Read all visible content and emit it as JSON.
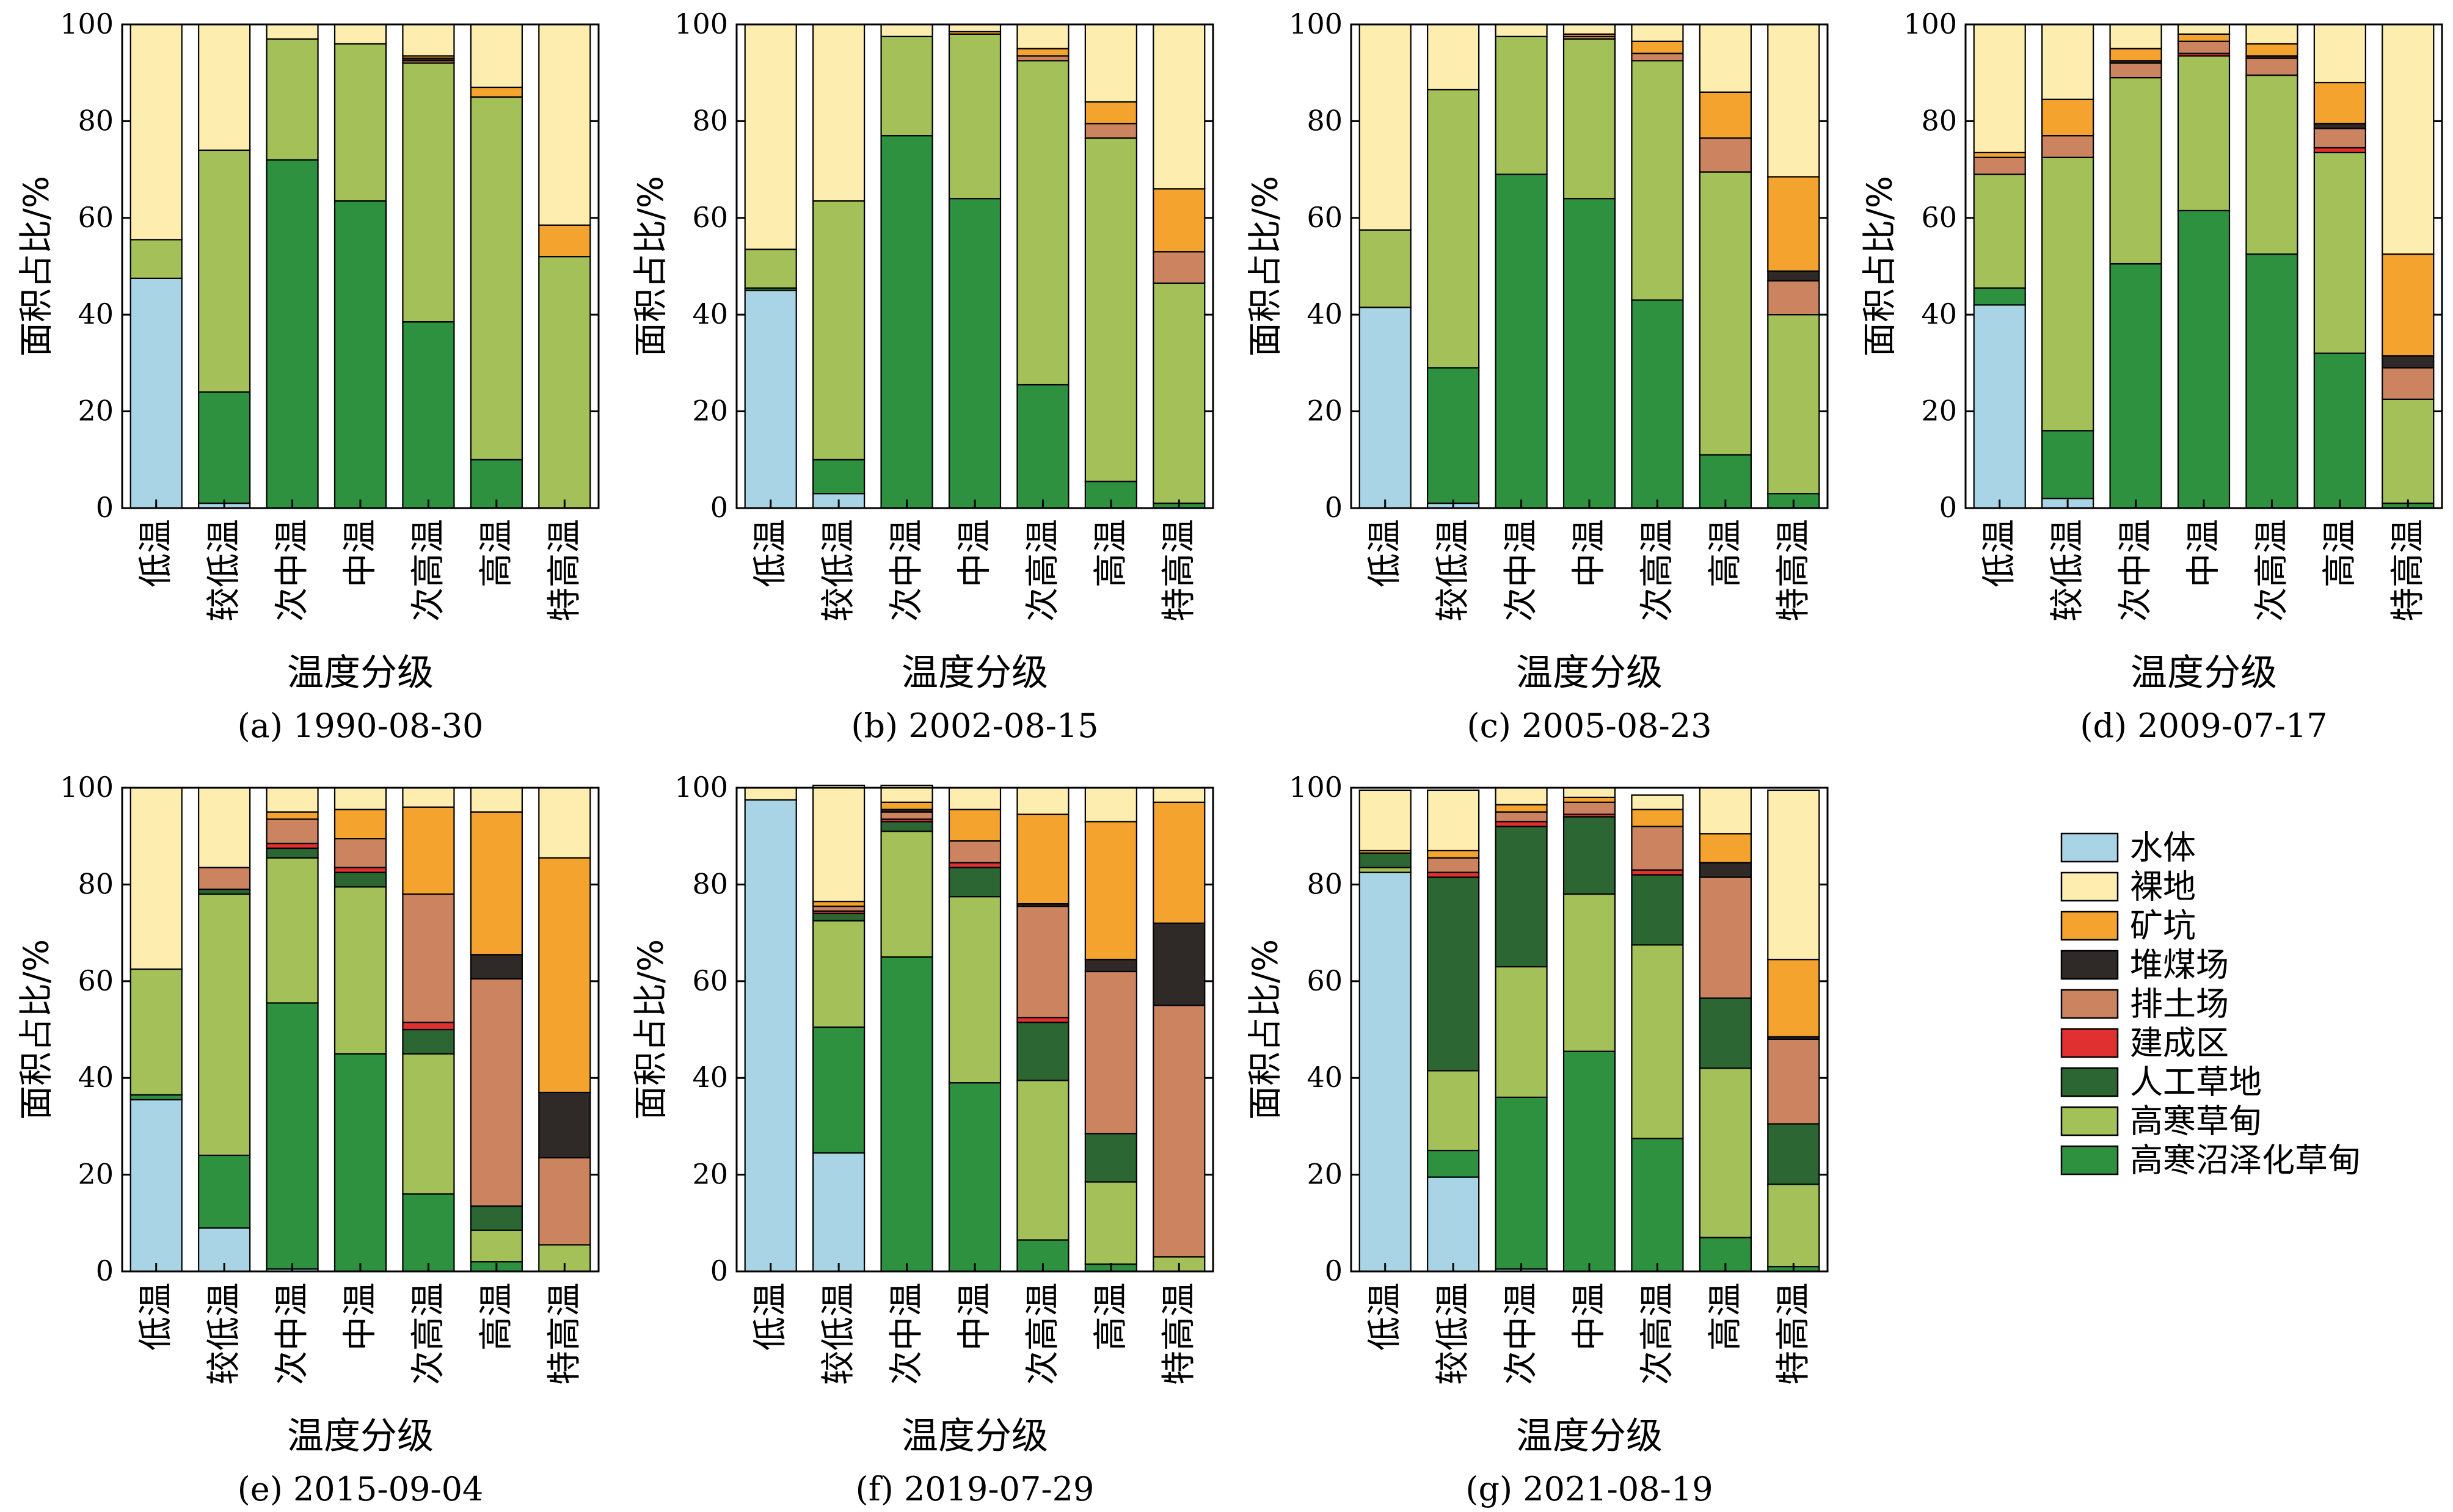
{
  "colors": {
    "water": "#a8d4e6",
    "bare_land": "#fdeeb0",
    "mine_pit": "#f4a32e",
    "coal_yard": "#2f2a28",
    "dump": "#cc8460",
    "built_up": "#e03030",
    "artificial_grass": "#2b6633",
    "alpine_meadow": "#a3c158",
    "alpine_swamp_meadow": "#2e9140"
  },
  "legend": [
    {
      "key": "water",
      "label": "水体"
    },
    {
      "key": "bare_land",
      "label": "裸地"
    },
    {
      "key": "mine_pit",
      "label": "矿坑"
    },
    {
      "key": "coal_yard",
      "label": "堆煤场"
    },
    {
      "key": "dump",
      "label": "排土场"
    },
    {
      "key": "built_up",
      "label": "建成区"
    },
    {
      "key": "artificial_grass",
      "label": "人工草地"
    },
    {
      "key": "alpine_meadow",
      "label": "高寒草甸"
    },
    {
      "key": "alpine_swamp_meadow",
      "label": "高寒沼泽化草甸"
    }
  ],
  "chart_data": [
    {
      "type": "bar",
      "stacked": true,
      "title": "(a) 1990-08-30",
      "xlabel": "温度分级",
      "ylabel": "面积占比/%",
      "ylim": [
        0,
        100
      ],
      "yticks": [
        0,
        20,
        40,
        60,
        80,
        100
      ],
      "categories": [
        "低温",
        "较低温",
        "次中温",
        "中温",
        "次高温",
        "高温",
        "特高温"
      ],
      "series": [
        {
          "name": "水体",
          "key": "water",
          "values": [
            47.5,
            1,
            0,
            0,
            0,
            0,
            0
          ]
        },
        {
          "name": "高寒沼泽化草甸",
          "key": "alpine_swamp_meadow",
          "values": [
            0,
            23,
            72,
            63.5,
            38.5,
            10,
            0
          ]
        },
        {
          "name": "高寒草甸",
          "key": "alpine_meadow",
          "values": [
            8,
            50,
            25,
            32.5,
            53.5,
            75,
            52
          ]
        },
        {
          "name": "人工草地",
          "key": "artificial_grass",
          "values": [
            0,
            0,
            0,
            0,
            0,
            0,
            0
          ]
        },
        {
          "name": "建成区",
          "key": "built_up",
          "values": [
            0,
            0,
            0,
            0,
            0,
            0,
            0
          ]
        },
        {
          "name": "排土场",
          "key": "dump",
          "values": [
            0,
            0,
            0,
            0,
            0.5,
            0,
            0
          ]
        },
        {
          "name": "堆煤场",
          "key": "coal_yard",
          "values": [
            0,
            0,
            0,
            0,
            0.5,
            0,
            0
          ]
        },
        {
          "name": "矿坑",
          "key": "mine_pit",
          "values": [
            0,
            0,
            0,
            0,
            0.5,
            2,
            6.5
          ]
        },
        {
          "name": "裸地",
          "key": "bare_land",
          "values": [
            44.5,
            26,
            3,
            4,
            6.5,
            13,
            41.5
          ]
        }
      ]
    },
    {
      "type": "bar",
      "stacked": true,
      "title": "(b) 2002-08-15",
      "xlabel": "温度分级",
      "ylabel": "面积占比/%",
      "ylim": [
        0,
        100
      ],
      "yticks": [
        0,
        20,
        40,
        60,
        80,
        100
      ],
      "categories": [
        "低温",
        "较低温",
        "次中温",
        "中温",
        "次高温",
        "高温",
        "特高温"
      ],
      "series": [
        {
          "name": "水体",
          "key": "water",
          "values": [
            45,
            3,
            0,
            0,
            0,
            0,
            0
          ]
        },
        {
          "name": "高寒沼泽化草甸",
          "key": "alpine_swamp_meadow",
          "values": [
            0.5,
            7,
            77,
            64,
            25.5,
            5.5,
            1
          ]
        },
        {
          "name": "高寒草甸",
          "key": "alpine_meadow",
          "values": [
            8,
            53.5,
            20.5,
            34,
            67,
            71,
            45.5
          ]
        },
        {
          "name": "人工草地",
          "key": "artificial_grass",
          "values": [
            0,
            0,
            0,
            0,
            0,
            0,
            0
          ]
        },
        {
          "name": "建成区",
          "key": "built_up",
          "values": [
            0,
            0,
            0,
            0,
            0,
            0,
            0
          ]
        },
        {
          "name": "排土场",
          "key": "dump",
          "values": [
            0,
            0,
            0,
            0,
            1,
            3,
            6.5
          ]
        },
        {
          "name": "堆煤场",
          "key": "coal_yard",
          "values": [
            0,
            0,
            0,
            0,
            0,
            0,
            0
          ]
        },
        {
          "name": "矿坑",
          "key": "mine_pit",
          "values": [
            0,
            0,
            0,
            0.5,
            1.5,
            4.5,
            13
          ]
        },
        {
          "name": "裸地",
          "key": "bare_land",
          "values": [
            46.5,
            36.5,
            2.5,
            1.5,
            5,
            16,
            34
          ]
        }
      ]
    },
    {
      "type": "bar",
      "stacked": true,
      "title": "(c) 2005-08-23",
      "xlabel": "温度分级",
      "ylabel": "面积占比/%",
      "ylim": [
        0,
        100
      ],
      "yticks": [
        0,
        20,
        40,
        60,
        80,
        100
      ],
      "categories": [
        "低温",
        "较低温",
        "次中温",
        "中温",
        "次高温",
        "高温",
        "特高温"
      ],
      "series": [
        {
          "name": "水体",
          "key": "water",
          "values": [
            41.5,
            1,
            0,
            0,
            0,
            0,
            0
          ]
        },
        {
          "name": "高寒沼泽化草甸",
          "key": "alpine_swamp_meadow",
          "values": [
            0,
            28,
            69,
            64,
            43,
            11,
            3
          ]
        },
        {
          "name": "高寒草甸",
          "key": "alpine_meadow",
          "values": [
            16,
            57.5,
            28.5,
            33,
            49.5,
            58.5,
            37
          ]
        },
        {
          "name": "人工草地",
          "key": "artificial_grass",
          "values": [
            0,
            0,
            0,
            0,
            0,
            0,
            0
          ]
        },
        {
          "name": "建成区",
          "key": "built_up",
          "values": [
            0,
            0,
            0,
            0,
            0,
            0,
            0
          ]
        },
        {
          "name": "排土场",
          "key": "dump",
          "values": [
            0,
            0,
            0,
            0.5,
            1.5,
            7,
            7
          ]
        },
        {
          "name": "堆煤场",
          "key": "coal_yard",
          "values": [
            0,
            0,
            0,
            0,
            0,
            0,
            2
          ]
        },
        {
          "name": "矿坑",
          "key": "mine_pit",
          "values": [
            0,
            0,
            0,
            0.5,
            2.5,
            9.5,
            19.5
          ]
        },
        {
          "name": "裸地",
          "key": "bare_land",
          "values": [
            42.5,
            13.5,
            2.5,
            2,
            3.5,
            14,
            31.5
          ]
        }
      ]
    },
    {
      "type": "bar",
      "stacked": true,
      "title": "(d) 2009-07-17",
      "xlabel": "温度分级",
      "ylabel": "面积占比/%",
      "ylim": [
        0,
        100
      ],
      "yticks": [
        0,
        20,
        40,
        60,
        80,
        100
      ],
      "categories": [
        "低温",
        "较低温",
        "次中温",
        "中温",
        "次高温",
        "高温",
        "特高温"
      ],
      "series": [
        {
          "name": "水体",
          "key": "water",
          "values": [
            42,
            2,
            0,
            0,
            0,
            0,
            0
          ]
        },
        {
          "name": "高寒沼泽化草甸",
          "key": "alpine_swamp_meadow",
          "values": [
            3.5,
            14,
            50.5,
            61.5,
            52.5,
            32,
            1
          ]
        },
        {
          "name": "高寒草甸",
          "key": "alpine_meadow",
          "values": [
            23.5,
            56.5,
            38.5,
            32,
            37,
            41.5,
            21.5
          ]
        },
        {
          "name": "人工草地",
          "key": "artificial_grass",
          "values": [
            0,
            0,
            0,
            0,
            0,
            0,
            0
          ]
        },
        {
          "name": "建成区",
          "key": "built_up",
          "values": [
            0,
            0,
            0,
            0.5,
            0,
            1,
            0
          ]
        },
        {
          "name": "排土场",
          "key": "dump",
          "values": [
            3.5,
            4.5,
            3,
            2.5,
            3.5,
            4,
            6.5
          ]
        },
        {
          "name": "堆煤场",
          "key": "coal_yard",
          "values": [
            0,
            0,
            0.5,
            0,
            0.5,
            1,
            2.5
          ]
        },
        {
          "name": "矿坑",
          "key": "mine_pit",
          "values": [
            1,
            7.5,
            2.5,
            1.5,
            2.5,
            8.5,
            21
          ]
        },
        {
          "name": "裸地",
          "key": "bare_land",
          "values": [
            26.5,
            15.5,
            5,
            2,
            4,
            12,
            47.5
          ]
        }
      ]
    },
    {
      "type": "bar",
      "stacked": true,
      "title": "(e) 2015-09-04",
      "xlabel": "温度分级",
      "ylabel": "面积占比/%",
      "ylim": [
        0,
        100
      ],
      "yticks": [
        0,
        20,
        40,
        60,
        80,
        100
      ],
      "categories": [
        "低温",
        "较低温",
        "次中温",
        "中温",
        "次高温",
        "高温",
        "特高温"
      ],
      "series": [
        {
          "name": "水体",
          "key": "water",
          "values": [
            35.5,
            9,
            0.5,
            0,
            0,
            0,
            0
          ]
        },
        {
          "name": "高寒沼泽化草甸",
          "key": "alpine_swamp_meadow",
          "values": [
            1,
            15,
            55,
            45,
            16,
            2,
            0
          ]
        },
        {
          "name": "高寒草甸",
          "key": "alpine_meadow",
          "values": [
            26,
            54,
            30,
            34.5,
            29,
            6.5,
            5.5
          ]
        },
        {
          "name": "人工草地",
          "key": "artificial_grass",
          "values": [
            0,
            1,
            2,
            3,
            5,
            5,
            0
          ]
        },
        {
          "name": "建成区",
          "key": "built_up",
          "values": [
            0,
            0,
            1,
            1,
            1.5,
            0,
            0
          ]
        },
        {
          "name": "排土场",
          "key": "dump",
          "values": [
            0,
            4.5,
            5,
            6,
            26.5,
            47,
            18
          ]
        },
        {
          "name": "堆煤场",
          "key": "coal_yard",
          "values": [
            0,
            0,
            0,
            0,
            0,
            5,
            13.5
          ]
        },
        {
          "name": "矿坑",
          "key": "mine_pit",
          "values": [
            0,
            0,
            1.5,
            6,
            18,
            29.5,
            48.5
          ]
        },
        {
          "name": "裸地",
          "key": "bare_land",
          "values": [
            37.5,
            16.5,
            5,
            4.5,
            4,
            5,
            14.5
          ]
        }
      ]
    },
    {
      "type": "bar",
      "stacked": true,
      "title": "(f) 2019-07-29",
      "xlabel": "温度分级",
      "ylabel": "面积占比/%",
      "ylim": [
        0,
        100
      ],
      "yticks": [
        0,
        20,
        40,
        60,
        80,
        100
      ],
      "categories": [
        "低温",
        "较低温",
        "次中温",
        "中温",
        "次高温",
        "高温",
        "特高温"
      ],
      "series": [
        {
          "name": "水体",
          "key": "water",
          "values": [
            97.5,
            24.5,
            0,
            0,
            0,
            0,
            0
          ]
        },
        {
          "name": "高寒沼泽化草甸",
          "key": "alpine_swamp_meadow",
          "values": [
            0,
            26,
            65,
            39,
            6.5,
            1.5,
            0
          ]
        },
        {
          "name": "高寒草甸",
          "key": "alpine_meadow",
          "values": [
            0,
            22,
            26,
            38.5,
            33,
            17,
            3
          ]
        },
        {
          "name": "人工草地",
          "key": "artificial_grass",
          "values": [
            0,
            1.5,
            2,
            6,
            12,
            10,
            0
          ]
        },
        {
          "name": "建成区",
          "key": "built_up",
          "values": [
            0,
            0.5,
            0.5,
            1,
            1,
            0,
            0
          ]
        },
        {
          "name": "排土场",
          "key": "dump",
          "values": [
            0,
            1,
            1.5,
            4.5,
            23,
            33.5,
            52
          ]
        },
        {
          "name": "堆煤场",
          "key": "coal_yard",
          "values": [
            0,
            0,
            0.5,
            0,
            0.5,
            2.5,
            17
          ]
        },
        {
          "name": "矿坑",
          "key": "mine_pit",
          "values": [
            0,
            1,
            1.5,
            6.5,
            18.5,
            28.5,
            25
          ]
        },
        {
          "name": "裸地",
          "key": "bare_land",
          "values": [
            2.5,
            24,
            3.5,
            4.5,
            5.5,
            7,
            3
          ]
        }
      ]
    },
    {
      "type": "bar",
      "stacked": true,
      "title": "(g) 2021-08-19",
      "xlabel": "温度分级",
      "ylabel": "面积占比/%",
      "ylim": [
        0,
        100
      ],
      "yticks": [
        0,
        20,
        40,
        60,
        80,
        100
      ],
      "categories": [
        "低温",
        "较低温",
        "次中温",
        "中温",
        "次高温",
        "高温",
        "特高温"
      ],
      "series": [
        {
          "name": "水体",
          "key": "water",
          "values": [
            82.5,
            19.5,
            0.5,
            0,
            0,
            0,
            0
          ]
        },
        {
          "name": "高寒沼泽化草甸",
          "key": "alpine_swamp_meadow",
          "values": [
            0,
            5.5,
            35.5,
            45.5,
            27.5,
            7,
            1
          ]
        },
        {
          "name": "高寒草甸",
          "key": "alpine_meadow",
          "values": [
            1,
            16.5,
            27,
            32.5,
            40,
            35,
            17
          ]
        },
        {
          "name": "人工草地",
          "key": "artificial_grass",
          "values": [
            3,
            40,
            29,
            16,
            14.5,
            14.5,
            12.5
          ]
        },
        {
          "name": "建成区",
          "key": "built_up",
          "values": [
            0,
            1,
            1,
            0.5,
            1,
            0,
            0
          ]
        },
        {
          "name": "排土场",
          "key": "dump",
          "values": [
            0,
            3,
            2,
            2.5,
            9,
            25,
            17.5
          ]
        },
        {
          "name": "堆煤场",
          "key": "coal_yard",
          "values": [
            0,
            0,
            0,
            0,
            0,
            3,
            0.5
          ]
        },
        {
          "name": "矿坑",
          "key": "mine_pit",
          "values": [
            0.5,
            1.5,
            1.5,
            1,
            3.5,
            6,
            16
          ]
        },
        {
          "name": "裸地",
          "key": "bare_land",
          "values": [
            12.5,
            12.5,
            3.5,
            2,
            3,
            9.5,
            35
          ]
        }
      ]
    }
  ]
}
